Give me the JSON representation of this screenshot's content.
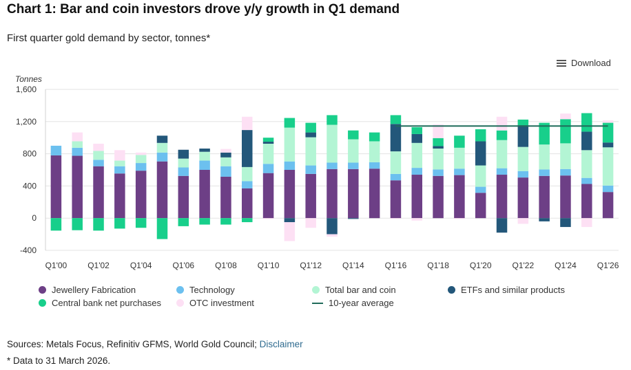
{
  "header": {
    "title": "Chart 1: Bar and coin investors drove y/y growth in Q1 demand",
    "subtitle": "First quarter gold demand by sector, tonnes*",
    "download_label": "Download"
  },
  "footer": {
    "sources_text": "Sources: Metals Focus, Refinitiv GFMS, World Gold Council; ",
    "disclaimer_link": "Disclaimer",
    "note": "* Data to 31 March 2026."
  },
  "colors": {
    "jewellery": "#6d3f86",
    "technology": "#6cc0ef",
    "bar_coin": "#b3f5d4",
    "etf": "#23577a",
    "central_bank": "#18cf8b",
    "otc": "#fde0f4",
    "avg_line": "#1f6b5a"
  },
  "chart_data": {
    "type": "bar",
    "stacked": true,
    "ylabel": "Tonnes",
    "ylim": [
      -400,
      1600
    ],
    "yticks": [
      "-400",
      "0",
      "400",
      "800",
      "1,200",
      "1,600"
    ],
    "ytick_values": [
      -400,
      0,
      400,
      800,
      1200,
      1600
    ],
    "xtick_labels": [
      "Q1'00",
      "Q1'02",
      "Q1'04",
      "Q1'06",
      "Q1'08",
      "Q1'10",
      "Q1'12",
      "Q1'14",
      "Q1'16",
      "Q1'18",
      "Q1'20",
      "Q1'22",
      "Q1'24",
      "Q1'26"
    ],
    "categories": [
      "Q1'00",
      "Q1'01",
      "Q1'02",
      "Q1'03",
      "Q1'04",
      "Q1'05",
      "Q1'06",
      "Q1'07",
      "Q1'08",
      "Q1'09",
      "Q1'10",
      "Q1'11",
      "Q1'12",
      "Q1'13",
      "Q1'14",
      "Q1'15",
      "Q1'16",
      "Q1'17",
      "Q1'18",
      "Q1'19",
      "Q1'20",
      "Q1'21",
      "Q1'22",
      "Q1'23",
      "Q1'24",
      "Q1'25",
      "Q1'26"
    ],
    "series": [
      {
        "name": "Jewellery Fabrication",
        "key": "jewellery",
        "values": [
          780,
          775,
          645,
          555,
          590,
          705,
          525,
          600,
          515,
          370,
          560,
          600,
          550,
          610,
          610,
          615,
          470,
          540,
          525,
          535,
          315,
          540,
          505,
          525,
          530,
          425,
          325
        ]
      },
      {
        "name": "Technology",
        "key": "technology",
        "values": [
          120,
          100,
          80,
          90,
          95,
          110,
          105,
          115,
          130,
          90,
          115,
          105,
          105,
          80,
          80,
          80,
          80,
          85,
          80,
          80,
          75,
          80,
          80,
          80,
          80,
          75,
          80
        ]
      },
      {
        "name": "Total bar and coin",
        "key": "bar_coin",
        "values": [
          0,
          80,
          110,
          70,
          100,
          120,
          110,
          110,
          110,
          175,
          250,
          420,
          350,
          470,
          290,
          260,
          280,
          310,
          260,
          260,
          265,
          350,
          300,
          310,
          320,
          345,
          475
        ]
      },
      {
        "name": "ETFs and similar products",
        "key": "etf",
        "values": [
          0,
          0,
          0,
          0,
          0,
          90,
          110,
          40,
          60,
          460,
          25,
          0,
          60,
          0,
          0,
          0,
          340,
          110,
          30,
          0,
          300,
          0,
          270,
          0,
          0,
          230,
          60
        ]
      },
      {
        "name": "Central bank net purchases",
        "key": "central_bank",
        "values": [
          -155,
          -150,
          -155,
          -130,
          -120,
          -260,
          -100,
          -80,
          -80,
          -50,
          50,
          120,
          120,
          120,
          110,
          110,
          110,
          85,
          100,
          150,
          150,
          120,
          70,
          270,
          300,
          230,
          245
        ]
      },
      {
        "name": "OTC investment",
        "key": "otc",
        "values": [
          0,
          110,
          90,
          130,
          30,
          0,
          0,
          0,
          45,
          165,
          0,
          0,
          0,
          0,
          0,
          0,
          0,
          0,
          170,
          0,
          0,
          170,
          0,
          0,
          70,
          0,
          30
        ]
      },
      {
        "name": "ETF outflows",
        "key": "etf",
        "values": [
          0,
          0,
          0,
          0,
          0,
          0,
          0,
          0,
          0,
          0,
          0,
          -50,
          0,
          -200,
          -10,
          0,
          0,
          0,
          0,
          0,
          0,
          -180,
          0,
          -40,
          -110,
          0,
          0
        ],
        "legend": false
      },
      {
        "name": "OTC outflows",
        "key": "otc",
        "values": [
          0,
          0,
          0,
          0,
          0,
          0,
          0,
          0,
          0,
          0,
          -10,
          -235,
          -120,
          -30,
          0,
          0,
          -10,
          -30,
          0,
          -10,
          0,
          0,
          -70,
          0,
          0,
          -110,
          0
        ],
        "legend": false
      }
    ],
    "avg_line": {
      "name": "10-year average",
      "value": 1145,
      "from": "Q1'16",
      "to": "Q1'26"
    },
    "legend": [
      {
        "label": "Jewellery Fabrication",
        "key": "jewellery",
        "kind": "dot"
      },
      {
        "label": "Technology",
        "key": "technology",
        "kind": "dot"
      },
      {
        "label": "Total bar and coin",
        "key": "bar_coin",
        "kind": "dot"
      },
      {
        "label": "ETFs and similar products",
        "key": "etf",
        "kind": "dot"
      },
      {
        "label": "Central bank net purchases",
        "key": "central_bank",
        "kind": "dot"
      },
      {
        "label": "OTC investment",
        "key": "otc",
        "kind": "dot"
      },
      {
        "label": "10-year average",
        "key": "avg_line",
        "kind": "line"
      }
    ]
  }
}
